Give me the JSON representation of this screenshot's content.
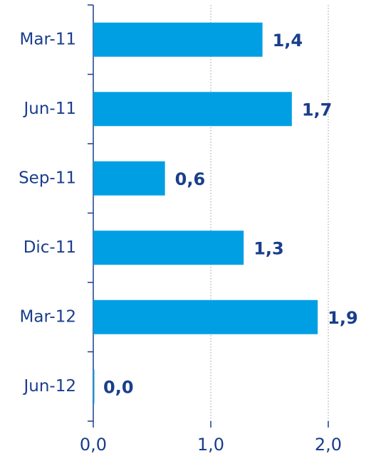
{
  "chart_data": {
    "type": "hbar",
    "categories": [
      "Mar-11",
      "Jun-11",
      "Sep-11",
      "Dic-11",
      "Mar-12",
      "Jun-12"
    ],
    "values": [
      1.44,
      1.69,
      0.61,
      1.28,
      1.91,
      0.0
    ],
    "value_labels": [
      "1,4",
      "1,7",
      "0,6",
      "1,3",
      "1,9",
      "0,0"
    ],
    "color": "#009fe3",
    "xlim": [
      0,
      2
    ],
    "xticks": [
      {
        "value": 0,
        "label": "0,0"
      },
      {
        "value": 1,
        "label": "1,0"
      },
      {
        "value": 2,
        "label": "2,0"
      }
    ],
    "grid": true
  }
}
